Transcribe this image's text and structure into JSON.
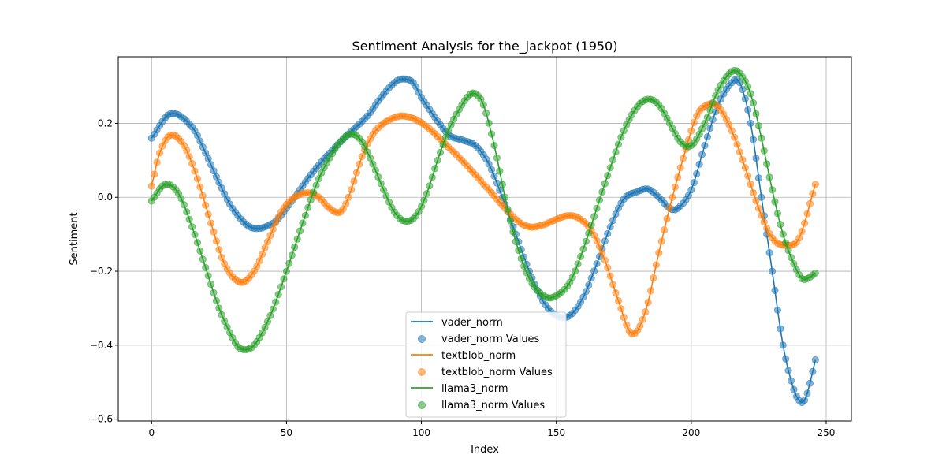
{
  "chart_data": {
    "type": "line",
    "title": "Sentiment Analysis for the_jackpot (1950)",
    "xlabel": "Index",
    "ylabel": "Sentiment",
    "xlim": [
      -12.35,
      259.35
    ],
    "ylim": [
      -0.605,
      0.38
    ],
    "xticks": [
      0,
      50,
      100,
      150,
      200,
      250
    ],
    "yticks": [
      -0.6,
      -0.4,
      -0.2,
      0.0,
      0.2
    ],
    "xtick_labels": [
      "0",
      "50",
      "100",
      "150",
      "200",
      "250"
    ],
    "ytick_labels": [
      "−0.6",
      "−0.4",
      "−0.2",
      "0.0",
      "0.2"
    ],
    "grid": true,
    "legend_position": "lower-center",
    "x_range": [
      0,
      246
    ],
    "series": [
      {
        "name": "vader_norm",
        "color": "#1f77b4",
        "x": [
          0,
          7,
          15,
          20,
          25,
          30,
          37,
          45,
          50,
          60,
          70,
          80,
          85,
          90,
          93,
          97,
          100,
          110,
          115,
          120,
          125,
          130,
          135,
          140,
          145,
          150,
          155,
          160,
          165,
          170,
          175,
          180,
          184,
          188,
          192,
          195,
          200,
          205,
          210,
          215,
          218,
          222,
          226,
          230,
          234,
          238,
          241,
          243,
          246
        ],
        "y": [
          0.16,
          0.226,
          0.19,
          0.12,
          0.04,
          -0.03,
          -0.082,
          -0.07,
          -0.03,
          0.07,
          0.15,
          0.22,
          0.27,
          0.31,
          0.32,
          0.31,
          0.27,
          0.17,
          0.155,
          0.14,
          0.09,
          0.0,
          -0.1,
          -0.2,
          -0.28,
          -0.32,
          -0.32,
          -0.27,
          -0.18,
          -0.08,
          -0.005,
          0.015,
          0.022,
          0.0,
          -0.03,
          -0.03,
          0.02,
          0.14,
          0.25,
          0.31,
          0.31,
          0.2,
          0.0,
          -0.2,
          -0.4,
          -0.52,
          -0.555,
          -0.53,
          -0.44
        ]
      },
      {
        "name": "textblob_norm",
        "color": "#ff7f0e",
        "x": [
          0,
          3,
          7,
          12,
          17,
          22,
          27,
          33,
          38,
          43,
          48,
          53,
          58,
          62,
          66,
          70,
          73,
          78,
          82,
          86,
          90,
          93,
          98,
          103,
          108,
          115,
          125,
          135,
          140,
          145,
          150,
          154,
          158,
          163,
          168,
          173,
          178,
          183,
          188,
          193,
          198,
          202,
          206,
          210,
          215,
          220,
          225,
          230,
          235,
          240,
          246
        ],
        "y": [
          0.03,
          0.12,
          0.168,
          0.14,
          0.05,
          -0.07,
          -0.18,
          -0.23,
          -0.2,
          -0.12,
          -0.04,
          0.0,
          0.012,
          0.0,
          -0.03,
          -0.04,
          0.0,
          0.11,
          0.17,
          0.2,
          0.215,
          0.22,
          0.21,
          0.185,
          0.15,
          0.1,
          0.02,
          -0.06,
          -0.08,
          -0.075,
          -0.06,
          -0.05,
          -0.055,
          -0.09,
          -0.17,
          -0.28,
          -0.37,
          -0.31,
          -0.15,
          0.0,
          0.13,
          0.22,
          0.25,
          0.245,
          0.18,
          0.08,
          -0.03,
          -0.11,
          -0.13,
          -0.11,
          0.035
        ]
      },
      {
        "name": "llama3_norm",
        "color": "#2ca02c",
        "x": [
          0,
          5,
          10,
          15,
          20,
          25,
          30,
          33,
          38,
          44,
          50,
          56,
          62,
          68,
          72,
          75,
          78,
          82,
          86,
          90,
          94,
          98,
          102,
          106,
          110,
          115,
          118,
          120,
          123,
          127,
          131,
          135,
          140,
          145,
          149,
          155,
          160,
          165,
          170,
          175,
          180,
          184,
          188,
          192,
          196,
          200,
          205,
          210,
          215,
          218,
          222,
          226,
          230,
          234,
          238,
          241,
          243,
          246
        ],
        "y": [
          -0.01,
          0.035,
          0.01,
          -0.08,
          -0.19,
          -0.3,
          -0.38,
          -0.41,
          -0.4,
          -0.32,
          -0.2,
          -0.07,
          0.05,
          0.13,
          0.165,
          0.17,
          0.15,
          0.09,
          0.02,
          -0.04,
          -0.065,
          -0.05,
          0.01,
          0.1,
          0.18,
          0.25,
          0.278,
          0.28,
          0.25,
          0.14,
          0.0,
          -0.12,
          -0.22,
          -0.265,
          -0.27,
          -0.23,
          -0.14,
          -0.03,
          0.08,
          0.18,
          0.245,
          0.265,
          0.25,
          0.2,
          0.15,
          0.14,
          0.2,
          0.29,
          0.34,
          0.335,
          0.28,
          0.16,
          0.02,
          -0.1,
          -0.18,
          -0.22,
          -0.22,
          -0.205
        ]
      }
    ],
    "legend": [
      "vader_norm",
      "vader_norm Values",
      "textblob_norm",
      "textblob_norm Values",
      "llama3_norm",
      "llama3_norm Values"
    ]
  }
}
